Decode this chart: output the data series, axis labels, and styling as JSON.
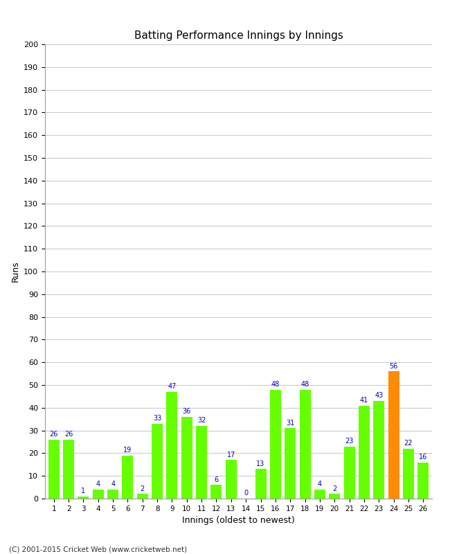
{
  "innings": [
    1,
    2,
    3,
    4,
    5,
    6,
    7,
    8,
    9,
    10,
    11,
    12,
    13,
    14,
    15,
    16,
    17,
    18,
    19,
    20,
    21,
    22,
    23,
    24,
    25,
    26
  ],
  "runs": [
    26,
    26,
    1,
    4,
    4,
    19,
    2,
    33,
    47,
    36,
    32,
    6,
    17,
    0,
    13,
    48,
    31,
    48,
    4,
    2,
    23,
    41,
    43,
    56,
    22,
    16
  ],
  "bar_colors": [
    "#66ff00",
    "#66ff00",
    "#66ff00",
    "#66ff00",
    "#66ff00",
    "#66ff00",
    "#66ff00",
    "#66ff00",
    "#66ff00",
    "#66ff00",
    "#66ff00",
    "#66ff00",
    "#66ff00",
    "#66ff00",
    "#66ff00",
    "#66ff00",
    "#66ff00",
    "#66ff00",
    "#66ff00",
    "#66ff00",
    "#66ff00",
    "#66ff00",
    "#66ff00",
    "#ff8c00",
    "#66ff00",
    "#66ff00"
  ],
  "title": "Batting Performance Innings by Innings",
  "xlabel": "Innings (oldest to newest)",
  "ylabel": "Runs",
  "ylim": [
    0,
    200
  ],
  "yticks": [
    0,
    10,
    20,
    30,
    40,
    50,
    60,
    70,
    80,
    90,
    100,
    110,
    120,
    130,
    140,
    150,
    160,
    170,
    180,
    190,
    200
  ],
  "footer": "(C) 2001-2015 Cricket Web (www.cricketweb.net)",
  "label_color": "#0000cc",
  "background_color": "#ffffff",
  "grid_color": "#cccccc",
  "fig_width": 6.5,
  "fig_height": 8.0,
  "fig_dpi": 100
}
